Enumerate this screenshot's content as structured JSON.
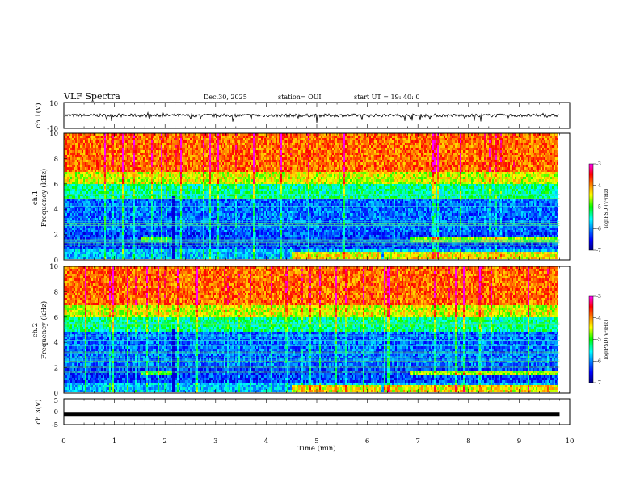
{
  "header": {
    "title": "VLF Spectra",
    "date": "Dec.30, 2025",
    "station": "station= OUI",
    "start": "start  UT =   19: 40: 0"
  },
  "chart_data": [
    {
      "type": "line",
      "name": "ch.1 waveform",
      "ylabel": "ch.1(V)",
      "ylim": [
        -10,
        10
      ],
      "yticks": [
        "10",
        "-10"
      ],
      "xlim": [
        0,
        10
      ],
      "baseline": 0
    },
    {
      "type": "heatmap",
      "ylabel_top": "ch.1",
      "ylabel": "Frequency (kHz)",
      "ylim": [
        0,
        10
      ],
      "yticks": [
        "0",
        "2",
        "4",
        "6",
        "8",
        "10"
      ],
      "xlim": [
        0,
        10
      ],
      "data_end_min": 9.8,
      "colorbar": {
        "label": "log(PSD)(V²/Hz)",
        "range": [
          -7,
          -3
        ],
        "ticks": [
          "-3",
          "-4",
          "-5",
          "-6",
          "-7"
        ]
      },
      "transition_times_min": [
        2.15,
        6.3
      ]
    },
    {
      "type": "heatmap",
      "ylabel_top": "ch.2",
      "ylabel": "Frequency (kHz)",
      "ylim": [
        0,
        10
      ],
      "yticks": [
        "0",
        "2",
        "4",
        "6",
        "8",
        "10"
      ],
      "xlim": [
        0,
        10
      ],
      "data_end_min": 9.8,
      "colorbar": {
        "label": "log(PSD)(V²/Hz)",
        "range": [
          -7,
          -3
        ],
        "ticks": [
          "-3",
          "-4",
          "-5",
          "-6",
          "-7"
        ]
      },
      "transition_times_min": [
        2.15,
        6.3
      ]
    },
    {
      "type": "line",
      "name": "ch.3 waveform",
      "ylabel": "ch.3(V)",
      "ylim": [
        -5,
        5
      ],
      "yticks": [
        "5",
        "0",
        "-5"
      ],
      "xlim": [
        0,
        10
      ],
      "baseline": -1
    }
  ],
  "xaxis": {
    "label": "Time (min)",
    "ticks": [
      "0",
      "1",
      "2",
      "3",
      "4",
      "5",
      "6",
      "7",
      "8",
      "9",
      "10"
    ]
  }
}
